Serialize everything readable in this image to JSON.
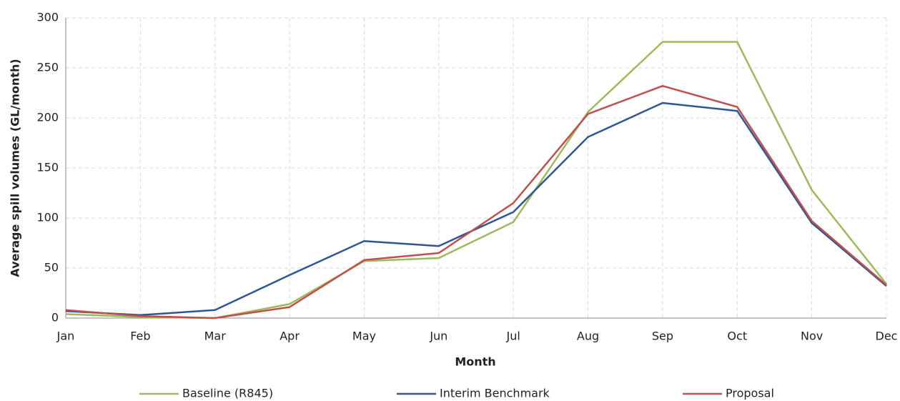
{
  "chart_data": {
    "type": "line",
    "x_label": "Month",
    "y_label": "Average spill volumes (GL/month)",
    "categories": [
      "Jan",
      "Feb",
      "Mar",
      "Apr",
      "May",
      "Jun",
      "Jul",
      "Aug",
      "Sep",
      "Oct",
      "Nov",
      "Dec"
    ],
    "series": [
      {
        "name": "Baseline (R845)",
        "color": "#9bbb59",
        "values": [
          4,
          1,
          0,
          14,
          57,
          60,
          96,
          206,
          276,
          276,
          128,
          34
        ]
      },
      {
        "name": "Interim Benchmark",
        "color": "#2f5597",
        "values": [
          7,
          3,
          8,
          43,
          77,
          72,
          106,
          181,
          215,
          207,
          95,
          32
        ]
      },
      {
        "name": "Proposal",
        "color": "#c0504d",
        "values": [
          8,
          2,
          0,
          11,
          58,
          65,
          115,
          204,
          232,
          211,
          97,
          33
        ]
      }
    ],
    "ylim": [
      0,
      300
    ],
    "yticks": [
      0,
      50,
      100,
      150,
      200,
      250,
      300
    ],
    "grid": true,
    "legend": "bottom"
  }
}
